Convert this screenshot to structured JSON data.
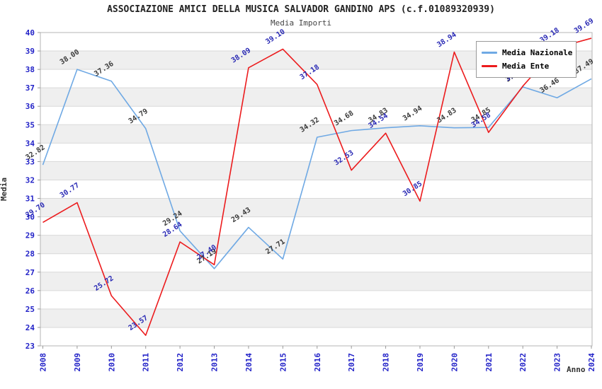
{
  "header": {
    "title": "ASSOCIAZIONE AMICI DELLA MUSICA SALVADOR GANDINO APS (c.f.01089320939)",
    "subtitle": "Media Importi"
  },
  "chart_data": {
    "type": "line",
    "title": "ASSOCIAZIONE AMICI DELLA MUSICA SALVADOR GANDINO APS (c.f.01089320939)",
    "subtitle": "Media Importi",
    "xlabel": "Anno",
    "ylabel": "Media",
    "ylim": [
      23,
      40
    ],
    "ytick_step": 1,
    "grid": true,
    "band_color": "#efefef",
    "gridline_color": "#d9d9d9",
    "frame_color": "#b5b5b5",
    "tick_label_color": "#2323c8",
    "legend_position": "upper right",
    "categories": [
      2008,
      2009,
      2010,
      2011,
      2012,
      2013,
      2014,
      2015,
      2016,
      2017,
      2018,
      2019,
      2020,
      2021,
      2022,
      2023,
      2024
    ],
    "series": [
      {
        "name": "Media Nazionale",
        "color": "#6FA9E4",
        "label_color": "#3a3a3a",
        "values": [
          32.82,
          38.0,
          37.36,
          34.79,
          29.24,
          27.19,
          29.43,
          27.71,
          34.32,
          34.68,
          34.83,
          34.94,
          34.83,
          34.85,
          37.05,
          36.46,
          37.49
        ]
      },
      {
        "name": "Media Ente",
        "color": "#EC1B1D",
        "label_color": "#2828b4",
        "values": [
          29.7,
          30.77,
          25.72,
          23.57,
          28.64,
          27.4,
          38.09,
          39.1,
          37.18,
          32.53,
          34.54,
          30.85,
          38.94,
          34.58,
          37.09,
          39.18,
          39.69
        ]
      }
    ]
  }
}
